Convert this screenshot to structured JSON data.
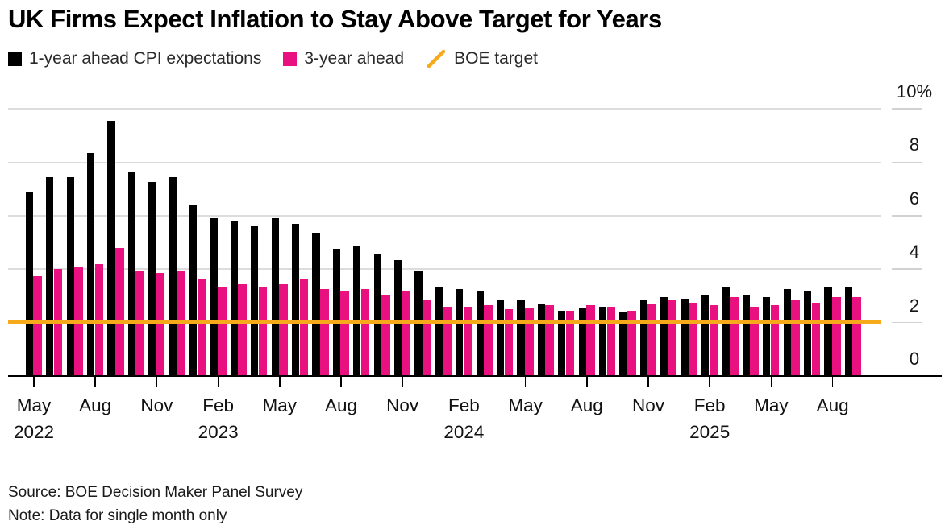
{
  "title": "UK Firms Expect Inflation to Stay Above Target for Years",
  "legend": [
    {
      "label": "1-year ahead CPI expectations",
      "color": "#000000",
      "swatch": "square"
    },
    {
      "label": "3-year ahead",
      "color": "#e8117f",
      "swatch": "square"
    },
    {
      "label": "BOE target",
      "color": "#f5a91b",
      "swatch": "slash"
    }
  ],
  "source_line": "Source: BOE Decision Maker Panel Survey",
  "note_line": "Note: Data for single month only",
  "chart_data": {
    "type": "bar",
    "title": "UK Firms Expect Inflation to Stay Above Target for Years",
    "x": [
      "2022-05",
      "2022-06",
      "2022-07",
      "2022-08",
      "2022-09",
      "2022-10",
      "2022-11",
      "2022-12",
      "2023-01",
      "2023-02",
      "2023-03",
      "2023-04",
      "2023-05",
      "2023-06",
      "2023-07",
      "2023-08",
      "2023-09",
      "2023-10",
      "2023-11",
      "2023-12",
      "2024-01",
      "2024-02",
      "2024-03",
      "2024-04",
      "2024-05",
      "2024-06",
      "2024-07",
      "2024-08",
      "2024-09",
      "2024-10",
      "2024-11",
      "2024-12",
      "2025-01",
      "2025-02",
      "2025-03",
      "2025-04",
      "2025-05",
      "2025-06",
      "2025-07",
      "2025-08",
      "2025-09"
    ],
    "series": [
      {
        "name": "1-year ahead CPI expectations",
        "color": "#000000",
        "values": [
          6.9,
          7.45,
          7.45,
          8.35,
          9.55,
          7.65,
          7.25,
          7.45,
          6.4,
          5.9,
          5.8,
          5.6,
          5.9,
          5.7,
          5.35,
          4.75,
          4.85,
          4.55,
          4.35,
          3.95,
          3.35,
          3.25,
          3.15,
          2.85,
          2.85,
          2.7,
          2.45,
          2.55,
          2.6,
          2.4,
          2.85,
          2.95,
          2.9,
          3.05,
          3.35,
          3.05,
          2.95,
          3.25,
          3.15,
          3.35,
          3.35
        ]
      },
      {
        "name": "3-year ahead",
        "color": "#e8117f",
        "values": [
          3.75,
          4.0,
          4.1,
          4.2,
          4.8,
          3.95,
          3.85,
          3.95,
          3.65,
          3.3,
          3.45,
          3.35,
          3.45,
          3.65,
          3.25,
          3.15,
          3.25,
          3.0,
          3.15,
          2.85,
          2.6,
          2.6,
          2.65,
          2.5,
          2.55,
          2.65,
          2.45,
          2.65,
          2.6,
          2.45,
          2.7,
          2.85,
          2.75,
          2.65,
          2.95,
          2.6,
          2.65,
          2.85,
          2.75,
          2.95,
          2.95
        ]
      }
    ],
    "target_line": {
      "name": "BOE target",
      "value": 2,
      "color": "#f5a91b"
    },
    "ylim": [
      0,
      10
    ],
    "grid": true,
    "legend_position": "top",
    "y_ticks": [
      {
        "value": 10,
        "label": "10%"
      },
      {
        "value": 8,
        "label": "8"
      },
      {
        "value": 6,
        "label": "6"
      },
      {
        "value": 4,
        "label": "4"
      },
      {
        "value": 2,
        "label": "2"
      },
      {
        "value": 0,
        "label": "0"
      }
    ],
    "x_ticks": [
      {
        "index": 0,
        "label": "May",
        "year": "2022"
      },
      {
        "index": 3,
        "label": "Aug"
      },
      {
        "index": 6,
        "label": "Nov"
      },
      {
        "index": 9,
        "label": "Feb",
        "year": "2023"
      },
      {
        "index": 12,
        "label": "May"
      },
      {
        "index": 15,
        "label": "Aug"
      },
      {
        "index": 18,
        "label": "Nov"
      },
      {
        "index": 21,
        "label": "Feb",
        "year": "2024"
      },
      {
        "index": 24,
        "label": "May"
      },
      {
        "index": 27,
        "label": "Aug"
      },
      {
        "index": 30,
        "label": "Nov"
      },
      {
        "index": 33,
        "label": "Feb",
        "year": "2025"
      },
      {
        "index": 36,
        "label": "May"
      },
      {
        "index": 39,
        "label": "Aug"
      }
    ]
  }
}
